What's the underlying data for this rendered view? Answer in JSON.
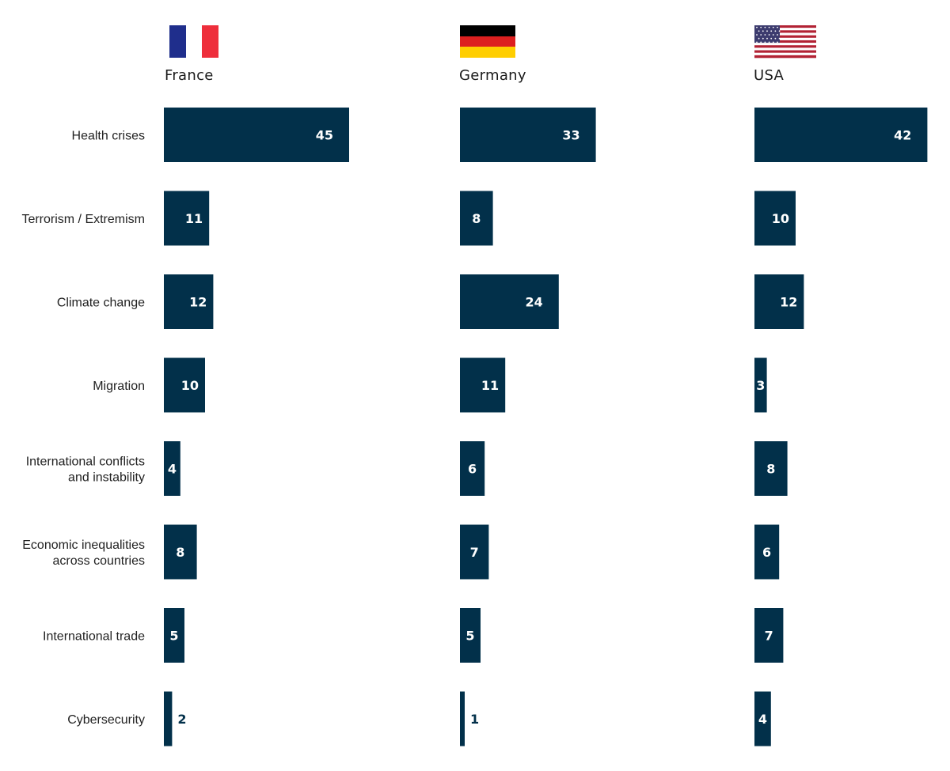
{
  "colors": {
    "bar": "#02304a",
    "label_inside": "#ffffff",
    "label_outside": "#02304a",
    "text": "#222222"
  },
  "panels": [
    {
      "country": "France",
      "flag": "france-flag"
    },
    {
      "country": "Germany",
      "flag": "germany-flag"
    },
    {
      "country": "USA",
      "flag": "usa-flag"
    }
  ],
  "chart_data": {
    "type": "bar",
    "orientation": "horizontal",
    "categories": [
      [
        "Health crises"
      ],
      [
        "Terrorism / Extremism"
      ],
      [
        "Climate change"
      ],
      [
        "Migration"
      ],
      [
        "International conflicts",
        "and instability"
      ],
      [
        "Economic inequalities",
        "across countries"
      ],
      [
        "International trade"
      ],
      [
        "Cybersecurity"
      ]
    ],
    "series": [
      {
        "name": "France",
        "values": [
          45,
          11,
          12,
          10,
          4,
          8,
          5,
          2
        ]
      },
      {
        "name": "Germany",
        "values": [
          33,
          8,
          24,
          11,
          6,
          7,
          5,
          1
        ]
      },
      {
        "name": "USA",
        "values": [
          42,
          10,
          12,
          3,
          8,
          6,
          7,
          4
        ]
      }
    ],
    "grid": false,
    "legend": "none"
  }
}
